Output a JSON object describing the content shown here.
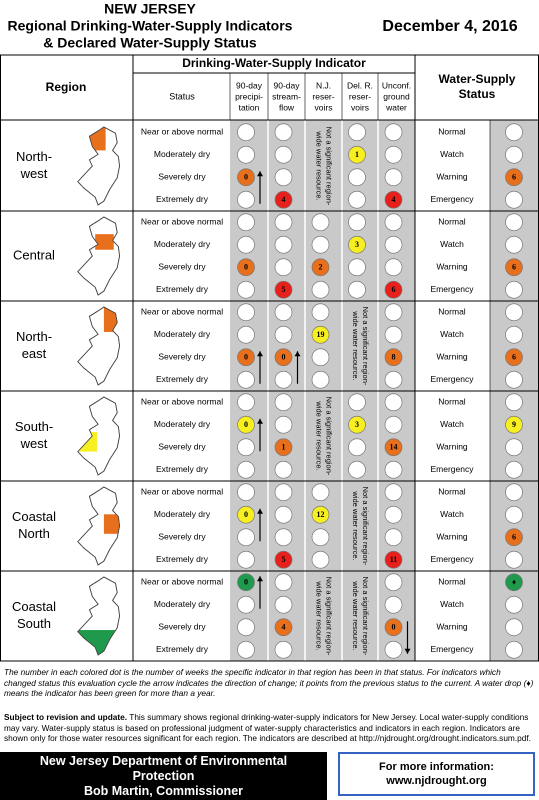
{
  "header": {
    "state": "NEW JERSEY",
    "title": [
      "Regional Drinking-Water-Supply Indicators",
      "& Declared Water-Supply Status"
    ],
    "date": "December 4, 2016"
  },
  "table": {
    "region_header": "Region",
    "indicator_header": "Drinking-Water-Supply Indicator",
    "status_header": "Status",
    "columns": [
      [
        "90-day",
        "precipi-",
        "tation"
      ],
      [
        "90-day",
        "stream-",
        "flow"
      ],
      [
        "N.J.",
        "reser-",
        "voirs"
      ],
      [
        "Del. R.",
        "reser-",
        "voirs"
      ],
      [
        "Unconf.",
        "ground",
        "water"
      ]
    ],
    "supply_header": [
      "Water-Supply",
      "Status"
    ],
    "regions": [
      {
        "name": [
          "North-",
          "west"
        ],
        "map_color": "#e86f1c",
        "statuses": [
          "Near or above normal",
          "Moderately dry",
          "Severely dry",
          "Extremely dry"
        ],
        "columns": [
          {
            "dots": [
              null,
              null,
              {
                "value": 0,
                "color": "#e86f1c",
                "arrow": "up"
              },
              null
            ]
          },
          {
            "dots": [
              null,
              null,
              null,
              {
                "value": 4,
                "color": "#e8201c"
              }
            ]
          },
          {
            "note": [
              "Not a significant region-",
              "wide water resource."
            ]
          },
          {
            "dots": [
              null,
              {
                "value": 1,
                "color": "#f7ef1f"
              },
              null,
              null
            ]
          },
          {
            "dots": [
              null,
              null,
              null,
              {
                "value": 4,
                "color": "#e8201c"
              }
            ]
          }
        ],
        "supply_labels": [
          "Normal",
          "Watch",
          "Warning",
          "Emergency"
        ],
        "supply": [
          null,
          null,
          {
            "value": 6,
            "color": "#e86f1c"
          },
          null
        ]
      },
      {
        "name": [
          "Central"
        ],
        "map_color": "#e86f1c",
        "statuses": [
          "Near or above normal",
          "Moderately dry",
          "Severely dry",
          "Extremely dry"
        ],
        "columns": [
          {
            "dots": [
              null,
              null,
              {
                "value": 0,
                "color": "#e86f1c"
              },
              null
            ]
          },
          {
            "dots": [
              null,
              null,
              null,
              {
                "value": 5,
                "color": "#e8201c"
              }
            ]
          },
          {
            "dots": [
              null,
              null,
              {
                "value": 2,
                "color": "#e86f1c"
              },
              null
            ]
          },
          {
            "dots": [
              null,
              {
                "value": 3,
                "color": "#f7ef1f"
              },
              null,
              null
            ]
          },
          {
            "dots": [
              null,
              null,
              null,
              {
                "value": 6,
                "color": "#e8201c"
              }
            ]
          }
        ],
        "supply_labels": [
          "Normal",
          "Watch",
          "Warning",
          "Emergency"
        ],
        "supply": [
          null,
          null,
          {
            "value": 6,
            "color": "#e86f1c"
          },
          null
        ]
      },
      {
        "name": [
          "North-",
          "east"
        ],
        "map_color": "#e86f1c",
        "statuses": [
          "Near or above normal",
          "Moderately dry",
          "Severely dry",
          "Extremely dry"
        ],
        "columns": [
          {
            "dots": [
              null,
              null,
              {
                "value": 0,
                "color": "#e86f1c",
                "arrow": "up"
              },
              null
            ]
          },
          {
            "dots": [
              null,
              null,
              {
                "value": 0,
                "color": "#e86f1c",
                "arrow": "up"
              },
              null
            ]
          },
          {
            "dots": [
              null,
              {
                "value": 19,
                "color": "#f7ef1f"
              },
              null,
              null
            ]
          },
          {
            "note": [
              "Not a significant region-",
              "wide water resource."
            ]
          },
          {
            "dots": [
              null,
              null,
              {
                "value": 8,
                "color": "#e86f1c"
              },
              null
            ]
          }
        ],
        "supply_labels": [
          "Normal",
          "Watch",
          "Warning",
          "Emergency"
        ],
        "supply": [
          null,
          null,
          {
            "value": 6,
            "color": "#e86f1c"
          },
          null
        ]
      },
      {
        "name": [
          "South-",
          "west"
        ],
        "map_color": "#f7ef1f",
        "statuses": [
          "Near or above normal",
          "Moderately dry",
          "Severely dry",
          "Extremely dry"
        ],
        "columns": [
          {
            "dots": [
              null,
              {
                "value": 0,
                "color": "#f7ef1f",
                "arrow": "up"
              },
              null,
              null
            ]
          },
          {
            "dots": [
              null,
              null,
              {
                "value": 1,
                "color": "#e86f1c"
              },
              null
            ]
          },
          {
            "note": [
              "Not a significant region-",
              "wide water resource."
            ]
          },
          {
            "dots": [
              null,
              {
                "value": 3,
                "color": "#f7ef1f"
              },
              null,
              null
            ]
          },
          {
            "dots": [
              null,
              null,
              {
                "value": 14,
                "color": "#e86f1c"
              },
              null
            ]
          }
        ],
        "supply_labels": [
          "Normal",
          "Watch",
          "Warning",
          "Emergency"
        ],
        "supply": [
          null,
          {
            "value": 9,
            "color": "#f7ef1f"
          },
          null,
          null
        ]
      },
      {
        "name": [
          "Coastal",
          "North"
        ],
        "map_color": "#e86f1c",
        "statuses": [
          "Near or above normal",
          "Moderately dry",
          "Severely dry",
          "Extremely dry"
        ],
        "columns": [
          {
            "dots": [
              null,
              {
                "value": 0,
                "color": "#f7ef1f",
                "arrow": "up"
              },
              null,
              null
            ]
          },
          {
            "dots": [
              null,
              null,
              null,
              {
                "value": 5,
                "color": "#e8201c"
              }
            ]
          },
          {
            "dots": [
              null,
              {
                "value": 12,
                "color": "#f7ef1f"
              },
              null,
              null
            ]
          },
          {
            "note": [
              "Not a significant region-",
              "wide water resource."
            ]
          },
          {
            "dots": [
              null,
              null,
              null,
              {
                "value": 11,
                "color": "#e8201c"
              }
            ]
          }
        ],
        "supply_labels": [
          "Normal",
          "Watch",
          "Warning",
          "Emergency"
        ],
        "supply": [
          null,
          null,
          {
            "value": 6,
            "color": "#e86f1c"
          },
          null
        ]
      },
      {
        "name": [
          "Coastal",
          "South"
        ],
        "map_color": "#1f9a4c",
        "statuses": [
          "Near or above normal",
          "Moderately dry",
          "Severely dry",
          "Extremely dry"
        ],
        "columns": [
          {
            "dots": [
              {
                "value": 0,
                "color": "#1f9a4c",
                "arrow": "up"
              },
              null,
              null,
              null
            ]
          },
          {
            "dots": [
              null,
              null,
              {
                "value": 4,
                "color": "#e86f1c"
              },
              null
            ]
          },
          {
            "note": [
              "Not a significant region-",
              "wide water resource."
            ]
          },
          {
            "note": [
              "Not a significant region-",
              "wide water resource."
            ]
          },
          {
            "dots": [
              null,
              null,
              {
                "value": 0,
                "color": "#e86f1c",
                "arrow": "down"
              },
              null
            ]
          }
        ],
        "supply_labels": [
          "Normal",
          "Watch",
          "Warning",
          "Emergency"
        ],
        "supply": [
          {
            "value": "♦",
            "color": "#1f9a4c"
          },
          null,
          null,
          null
        ]
      }
    ]
  },
  "footer": {
    "caption": "The number in each colored dot is the number of weeks the specific indicator in that region has been in that status. For indicators which changed status this evaluation cycle the arrow indicates the direction of change; it points from the previous status to the current. A water drop (♦) means the indicator has been green for more than a year.",
    "subject_lead": "Subject to revision and update.",
    "subject_text": "This summary shows regional drinking-water-supply indicators for New Jersey. Local water-supply conditions may vary. Water-supply status is based on professional judgment of water-supply characteristics and indicators in each region. Indicators are shown only for those water resources significant for each region. The indicators are described at http://njdrought.org/drought.indicators.sum.pdf.",
    "agency": [
      "New Jersey Department of Environmental",
      "Protection",
      "Bob Martin, Commissioner"
    ],
    "info": [
      "For more information:",
      "www.njdrought.org"
    ]
  }
}
